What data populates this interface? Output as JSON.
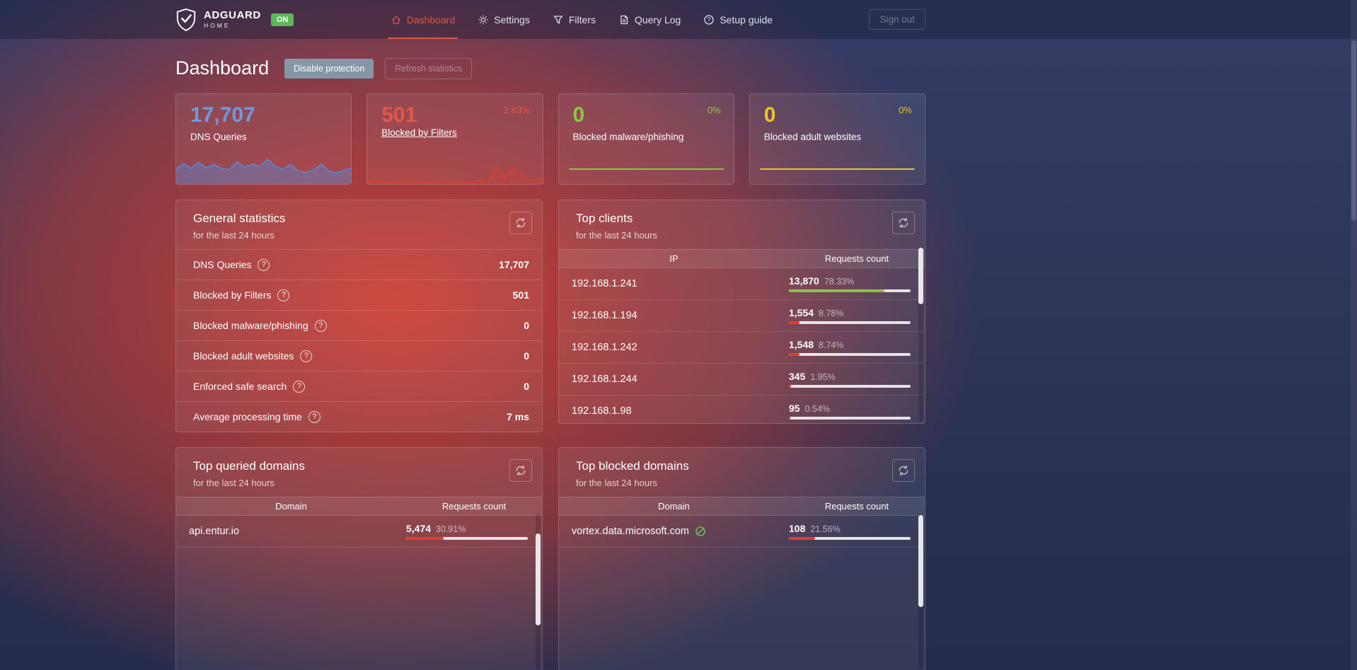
{
  "colors": {
    "accent": "#d9564c",
    "blue": "#6f9bdc",
    "red": "#e2564b",
    "green": "#8fc742",
    "yellow": "#e9c428",
    "on_badge": "#5cb85c",
    "bar_green": "#8bc34a",
    "bar_red": "#e03c32",
    "block_icon_green": "#63bd5a"
  },
  "topbar": {
    "brand": "ADGUARD",
    "brand_sub": "HOME",
    "status_badge": "ON",
    "nav": [
      {
        "label": "Dashboard",
        "icon": "dashboard-icon"
      },
      {
        "label": "Settings",
        "icon": "gear-icon"
      },
      {
        "label": "Filters",
        "icon": "funnel-icon"
      },
      {
        "label": "Query Log",
        "icon": "document-icon"
      },
      {
        "label": "Setup guide",
        "icon": "question-circle-icon"
      }
    ],
    "signout": "Sign out"
  },
  "page": {
    "title": "Dashboard",
    "buttons": {
      "disable": "Disable protection",
      "refresh": "Refresh statistics"
    }
  },
  "stat_cards": [
    {
      "value": "17,707",
      "label": "DNS Queries",
      "percent": "",
      "color": "#6f9bdc",
      "spark": {
        "type": "area",
        "color": "#5b86d0",
        "fill": "rgba(91,134,208,0.45)",
        "values": [
          46,
          64,
          50,
          68,
          52,
          62,
          50,
          46,
          70,
          54,
          64,
          56,
          78,
          56,
          48,
          62,
          42,
          38,
          46,
          62,
          42,
          36,
          44,
          52
        ]
      }
    },
    {
      "value": "501",
      "label": "Blocked by Filters",
      "percent": "2.83%",
      "color": "#e2564b",
      "spark": {
        "type": "area",
        "color": "#dd3d33",
        "fill": "rgba(221,61,51,0.22)",
        "values": [
          14,
          10,
          16,
          8,
          12,
          18,
          10,
          14,
          10,
          8,
          14,
          10,
          12,
          8,
          10,
          14,
          10,
          62,
          22,
          56,
          38,
          16,
          18,
          22
        ]
      }
    },
    {
      "value": "0",
      "label": "Blocked malware/phishing",
      "percent": "0%",
      "color": "#8fc742",
      "line_color": "#8bc34a"
    },
    {
      "value": "0",
      "label": "Blocked adult websites",
      "percent": "0%",
      "color": "#e9c428",
      "line_color": "#e8c32b"
    }
  ],
  "general": {
    "title": "General statistics",
    "subtitle": "for the last 24 hours",
    "rows": [
      {
        "label": "DNS Queries",
        "value": "17,707"
      },
      {
        "label": "Blocked by Filters",
        "value": "501"
      },
      {
        "label": "Blocked malware/phishing",
        "value": "0"
      },
      {
        "label": "Blocked adult websites",
        "value": "0"
      },
      {
        "label": "Enforced safe search",
        "value": "0"
      },
      {
        "label": "Average processing time",
        "value": "7 ms"
      }
    ]
  },
  "clients": {
    "title": "Top clients",
    "subtitle": "for the last 24 hours",
    "col_ip": "IP",
    "col_count": "Requests count",
    "rows": [
      {
        "ip": "192.168.1.241",
        "count": "13,870",
        "percent": "78.33%",
        "bar": 78.33,
        "bar_color": "#8bc34a"
      },
      {
        "ip": "192.168.1.194",
        "count": "1,554",
        "percent": "8.78%",
        "bar": 8.78,
        "bar_color": "#e03c32"
      },
      {
        "ip": "192.168.1.242",
        "count": "1,548",
        "percent": "8.74%",
        "bar": 8.74,
        "bar_color": "#e03c32"
      },
      {
        "ip": "192.168.1.244",
        "count": "345",
        "percent": "1.95%",
        "bar": 1.95,
        "bar_color": "#e03c32"
      },
      {
        "ip": "192.168.1.98",
        "count": "95",
        "percent": "0.54%",
        "bar": 0.54,
        "bar_color": "#e03c32"
      }
    ]
  },
  "queried": {
    "title": "Top queried domains",
    "subtitle": "for the last 24 hours",
    "col_domain": "Domain",
    "col_count": "Requests count",
    "rows": [
      {
        "domain": "api.entur.io",
        "count": "5,474",
        "percent": "30.91%",
        "bar": 30.91,
        "bar_color": "#e03c32"
      }
    ]
  },
  "blocked": {
    "title": "Top blocked domains",
    "subtitle": "for the last 24 hours",
    "col_domain": "Domain",
    "col_count": "Requests count",
    "rows": [
      {
        "domain": "vortex.data.microsoft.com",
        "count": "108",
        "percent": "21.56%",
        "bar": 21.56,
        "bar_color": "#e03c32"
      }
    ]
  }
}
